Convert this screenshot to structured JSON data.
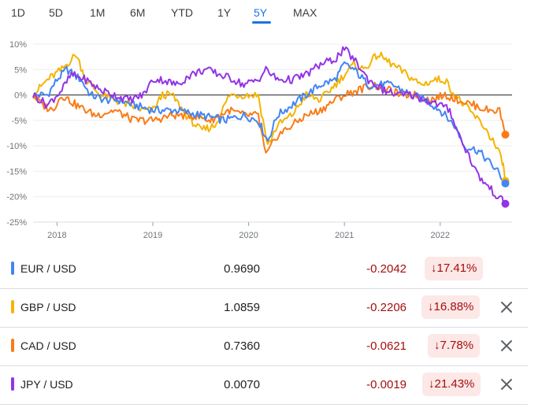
{
  "tabs": [
    {
      "label": "1D"
    },
    {
      "label": "5D"
    },
    {
      "label": "1M"
    },
    {
      "label": "6M"
    },
    {
      "label": "YTD"
    },
    {
      "label": "1Y"
    },
    {
      "label": "5Y"
    },
    {
      "label": "MAX"
    }
  ],
  "active_tab": "5Y",
  "chart_data": {
    "type": "line",
    "x_range": [
      2017.75,
      2022.75
    ],
    "ylim": [
      -25,
      10
    ],
    "yticks": [
      "10%",
      "5%",
      "0%",
      "-5%",
      "-10%",
      "-15%",
      "-20%",
      "-25%"
    ],
    "xticks": [
      "2018",
      "2019",
      "2020",
      "2021",
      "2022"
    ],
    "series": [
      {
        "name": "EUR / USD",
        "color": "#4285f4",
        "points": [
          [
            2017.75,
            0
          ],
          [
            2017.9,
            0
          ],
          [
            2018.0,
            3
          ],
          [
            2018.1,
            5
          ],
          [
            2018.25,
            3
          ],
          [
            2018.35,
            0
          ],
          [
            2018.5,
            -1
          ],
          [
            2018.65,
            -1
          ],
          [
            2018.8,
            -2
          ],
          [
            2019.0,
            -3
          ],
          [
            2019.25,
            -3
          ],
          [
            2019.5,
            -4
          ],
          [
            2019.75,
            -5
          ],
          [
            2019.95,
            -4
          ],
          [
            2020.1,
            -5
          ],
          [
            2020.2,
            -9
          ],
          [
            2020.3,
            -4
          ],
          [
            2020.45,
            -2
          ],
          [
            2020.6,
            0
          ],
          [
            2020.75,
            2
          ],
          [
            2020.9,
            3
          ],
          [
            2021.0,
            6
          ],
          [
            2021.1,
            5
          ],
          [
            2021.25,
            2
          ],
          [
            2021.5,
            2
          ],
          [
            2021.7,
            0
          ],
          [
            2021.85,
            -1
          ],
          [
            2022.0,
            -3
          ],
          [
            2022.15,
            -6
          ],
          [
            2022.25,
            -10
          ],
          [
            2022.4,
            -11
          ],
          [
            2022.5,
            -13
          ],
          [
            2022.6,
            -15
          ],
          [
            2022.68,
            -17.4
          ]
        ]
      },
      {
        "name": "GBP / USD",
        "color": "#f4b400",
        "points": [
          [
            2017.75,
            0
          ],
          [
            2017.9,
            3
          ],
          [
            2018.05,
            5
          ],
          [
            2018.2,
            8
          ],
          [
            2018.3,
            3
          ],
          [
            2018.45,
            0
          ],
          [
            2018.6,
            -1
          ],
          [
            2018.75,
            -2
          ],
          [
            2018.9,
            -3
          ],
          [
            2019.0,
            -3
          ],
          [
            2019.1,
            0
          ],
          [
            2019.2,
            0
          ],
          [
            2019.35,
            -4
          ],
          [
            2019.5,
            -7
          ],
          [
            2019.65,
            -6
          ],
          [
            2019.8,
            0
          ],
          [
            2019.95,
            0
          ],
          [
            2020.1,
            0
          ],
          [
            2020.2,
            -10
          ],
          [
            2020.3,
            -6
          ],
          [
            2020.45,
            -4
          ],
          [
            2020.6,
            0
          ],
          [
            2020.75,
            -1
          ],
          [
            2020.9,
            2
          ],
          [
            2021.0,
            4
          ],
          [
            2021.1,
            6
          ],
          [
            2021.2,
            5
          ],
          [
            2021.35,
            8
          ],
          [
            2021.5,
            6
          ],
          [
            2021.65,
            4
          ],
          [
            2021.8,
            2
          ],
          [
            2021.95,
            3
          ],
          [
            2022.05,
            3
          ],
          [
            2022.15,
            0
          ],
          [
            2022.3,
            -3
          ],
          [
            2022.45,
            -6
          ],
          [
            2022.55,
            -9
          ],
          [
            2022.65,
            -13
          ],
          [
            2022.68,
            -16.9
          ]
        ]
      },
      {
        "name": "CAD / USD",
        "color": "#fa7b17",
        "points": [
          [
            2017.75,
            0
          ],
          [
            2017.85,
            -2
          ],
          [
            2017.95,
            -3
          ],
          [
            2018.05,
            0
          ],
          [
            2018.2,
            -2
          ],
          [
            2018.4,
            -4
          ],
          [
            2018.6,
            -3
          ],
          [
            2018.8,
            -5
          ],
          [
            2019.0,
            -5
          ],
          [
            2019.2,
            -4
          ],
          [
            2019.4,
            -4
          ],
          [
            2019.6,
            -5
          ],
          [
            2019.8,
            -3
          ],
          [
            2019.95,
            -4
          ],
          [
            2020.1,
            -4
          ],
          [
            2020.18,
            -12
          ],
          [
            2020.3,
            -8
          ],
          [
            2020.45,
            -6
          ],
          [
            2020.6,
            -4
          ],
          [
            2020.75,
            -3
          ],
          [
            2020.9,
            -1
          ],
          [
            2021.0,
            0
          ],
          [
            2021.15,
            1
          ],
          [
            2021.3,
            2
          ],
          [
            2021.45,
            1
          ],
          [
            2021.6,
            0
          ],
          [
            2021.75,
            0
          ],
          [
            2021.9,
            -1
          ],
          [
            2022.05,
            0
          ],
          [
            2022.2,
            -1
          ],
          [
            2022.35,
            -2
          ],
          [
            2022.5,
            -3
          ],
          [
            2022.62,
            -3
          ],
          [
            2022.68,
            -7.8
          ]
        ]
      },
      {
        "name": "JPY / USD",
        "color": "#9334e6",
        "points": [
          [
            2017.75,
            0
          ],
          [
            2017.9,
            -2
          ],
          [
            2018.05,
            1
          ],
          [
            2018.15,
            4
          ],
          [
            2018.3,
            3
          ],
          [
            2018.45,
            1
          ],
          [
            2018.6,
            0
          ],
          [
            2018.75,
            -1
          ],
          [
            2018.9,
            0
          ],
          [
            2019.0,
            3
          ],
          [
            2019.1,
            3
          ],
          [
            2019.25,
            2
          ],
          [
            2019.4,
            4
          ],
          [
            2019.55,
            5
          ],
          [
            2019.7,
            4
          ],
          [
            2019.85,
            3
          ],
          [
            2019.95,
            2
          ],
          [
            2020.1,
            3
          ],
          [
            2020.18,
            5
          ],
          [
            2020.3,
            3
          ],
          [
            2020.45,
            3
          ],
          [
            2020.6,
            4
          ],
          [
            2020.75,
            6
          ],
          [
            2020.9,
            7
          ],
          [
            2021.0,
            9
          ],
          [
            2021.1,
            7
          ],
          [
            2021.25,
            3
          ],
          [
            2021.4,
            1
          ],
          [
            2021.55,
            0
          ],
          [
            2021.7,
            0
          ],
          [
            2021.85,
            -1
          ],
          [
            2022.0,
            -2
          ],
          [
            2022.1,
            -3
          ],
          [
            2022.2,
            -8
          ],
          [
            2022.3,
            -12
          ],
          [
            2022.4,
            -16
          ],
          [
            2022.5,
            -18
          ],
          [
            2022.6,
            -20
          ],
          [
            2022.68,
            -21.4
          ]
        ]
      }
    ]
  },
  "rows": [
    {
      "name": "EUR / USD",
      "color": "#4285f4",
      "price": "0.9690",
      "change": "-0.2042",
      "pct": "17.41%",
      "closable": false
    },
    {
      "name": "GBP / USD",
      "color": "#f4b400",
      "price": "1.0859",
      "change": "-0.2206",
      "pct": "16.88%",
      "closable": true
    },
    {
      "name": "CAD / USD",
      "color": "#fa7b17",
      "price": "0.7360",
      "change": "-0.0621",
      "pct": "7.78%",
      "closable": true
    },
    {
      "name": "JPY / USD",
      "color": "#9334e6",
      "price": "0.0070",
      "change": "-0.0019",
      "pct": "21.43%",
      "closable": true
    }
  ]
}
